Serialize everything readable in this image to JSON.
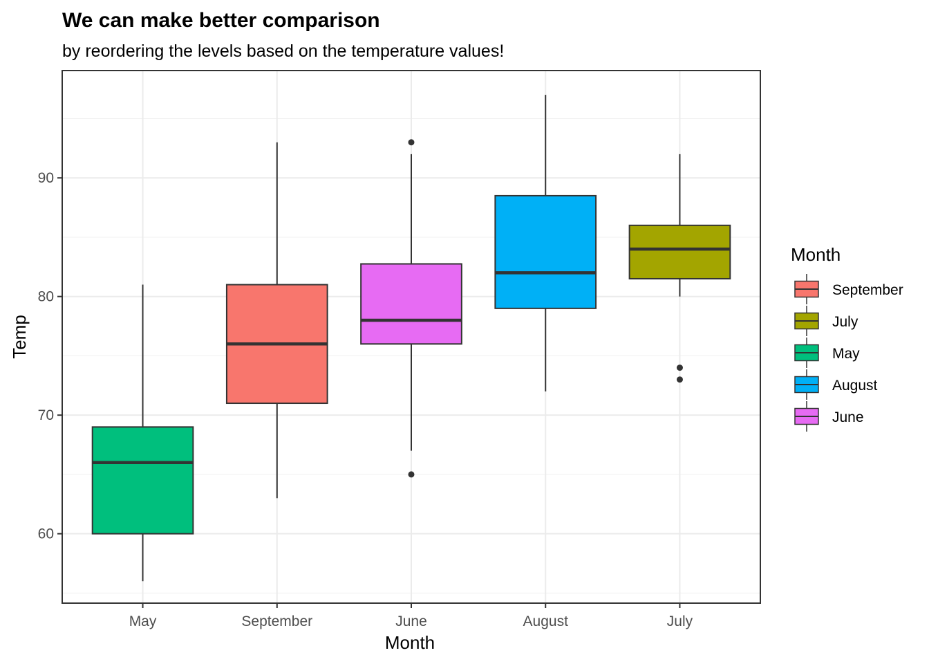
{
  "chart_data": {
    "type": "boxplot",
    "title": "We can make better comparison",
    "subtitle": "by reordering the levels based on the temperature values!",
    "xlabel": "Month",
    "ylabel": "Temp",
    "ylim": [
      54.15,
      99.05
    ],
    "yticks": [
      60,
      70,
      80,
      90
    ],
    "grid": true,
    "legend": {
      "title": "Month",
      "position": "right"
    },
    "categories": [
      "May",
      "September",
      "June",
      "August",
      "July"
    ],
    "boxes": [
      {
        "category": "May",
        "color": "#00BF7D",
        "min": 56,
        "q1": 60,
        "median": 66,
        "q3": 69,
        "max": 81,
        "outliers": []
      },
      {
        "category": "September",
        "color": "#F8766D",
        "min": 63,
        "q1": 71,
        "median": 76,
        "q3": 81,
        "max": 93,
        "outliers": []
      },
      {
        "category": "June",
        "color": "#E76BF3",
        "min": 67,
        "q1": 76,
        "median": 78,
        "q3": 82.75,
        "max": 92,
        "outliers": [
          93,
          65
        ]
      },
      {
        "category": "August",
        "color": "#00B0F6",
        "min": 72,
        "q1": 79,
        "median": 82,
        "q3": 88.5,
        "max": 97,
        "outliers": []
      },
      {
        "category": "July",
        "color": "#A3A500",
        "min": 80,
        "q1": 81.5,
        "median": 84,
        "q3": 86,
        "max": 92,
        "outliers": [
          74,
          73
        ]
      }
    ],
    "legend_entries": [
      {
        "label": "September",
        "color": "#F8766D"
      },
      {
        "label": "July",
        "color": "#A3A500"
      },
      {
        "label": "May",
        "color": "#00BF7D"
      },
      {
        "label": "August",
        "color": "#00B0F6"
      },
      {
        "label": "June",
        "color": "#E76BF3"
      }
    ]
  }
}
